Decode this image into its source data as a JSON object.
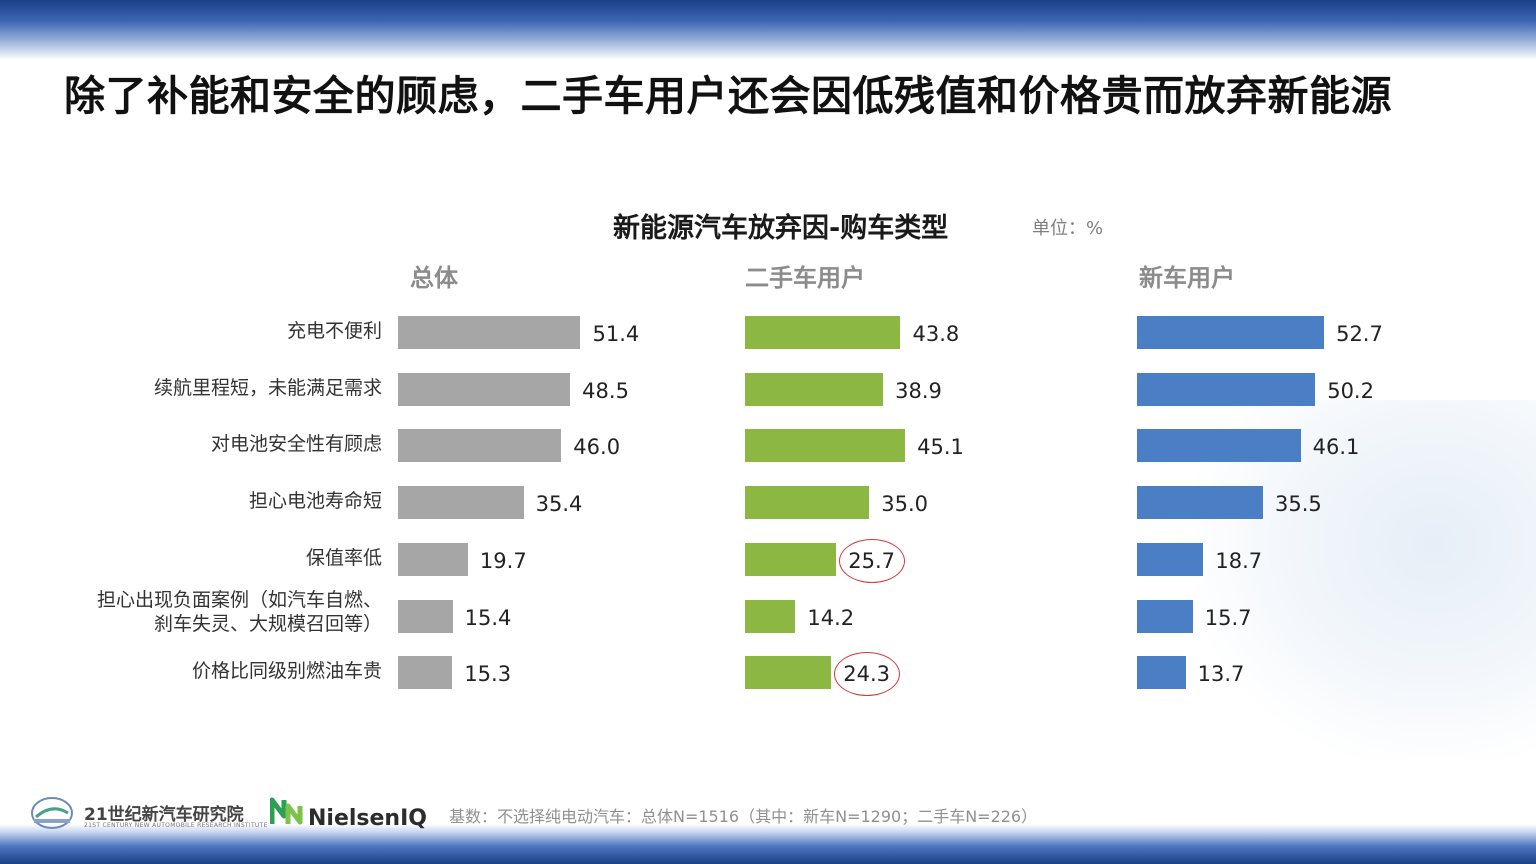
{
  "page_title": "除了补能和安全的顾虑，二手车用户还会因低残值和价格贵而放弃新能源",
  "colors": {
    "overall": "#a6a6a6",
    "used": "#8db743",
    "new": "#4a7fc5",
    "highlight": "#d23c3c"
  },
  "chart_data": {
    "type": "bar",
    "orientation": "horizontal",
    "title": "新能源汽车放弃因-购车类型",
    "unit": "单位：%",
    "categories": [
      "充电不便利",
      "续航里程短，未能满足需求",
      "对电池安全性有顾虑",
      "担心电池寿命短",
      "保值率低",
      "担心出现负面案例（如汽车自燃、刹车失灵、大规模召回等）",
      "价格比同级别燃油车贵"
    ],
    "category_lines": [
      [
        "充电不便利"
      ],
      [
        "续航里程短，未能满足需求"
      ],
      [
        "对电池安全性有顾虑"
      ],
      [
        "担心电池寿命短"
      ],
      [
        "保值率低"
      ],
      [
        "担心出现负面案例（如汽车自燃、",
        "刹车失灵、大规模召回等）"
      ],
      [
        "价格比同级别燃油车贵"
      ]
    ],
    "series": [
      {
        "name": "总体",
        "values": [
          51.4,
          48.5,
          46.0,
          35.4,
          19.7,
          15.4,
          15.3
        ],
        "labels": [
          "51.4",
          "48.5",
          "46.0",
          "35.4",
          "19.7",
          "15.4",
          "15.3"
        ]
      },
      {
        "name": "二手车用户",
        "values": [
          43.8,
          38.9,
          45.1,
          35.0,
          25.7,
          14.2,
          24.3
        ],
        "labels": [
          "43.8",
          "38.9",
          "45.1",
          "35.0",
          "25.7",
          "14.2",
          "24.3"
        ],
        "highlighted": [
          4,
          6
        ]
      },
      {
        "name": "新车用户",
        "values": [
          52.7,
          50.2,
          46.1,
          35.5,
          18.7,
          15.7,
          13.7
        ],
        "labels": [
          "52.7",
          "50.2",
          "46.1",
          "35.5",
          "18.7",
          "15.7",
          "13.7"
        ]
      }
    ]
  },
  "footer": {
    "org_name": "21世纪新汽车研究院",
    "org_subtitle": "21ST CENTURY NEW AUTOMOBILE RESEARCH INSTITUTE",
    "brand": "NielsenIQ",
    "note": "基数：不选择纯电动汽车：总体N=1516（其中：新车N=1290；二手车N=226）"
  }
}
